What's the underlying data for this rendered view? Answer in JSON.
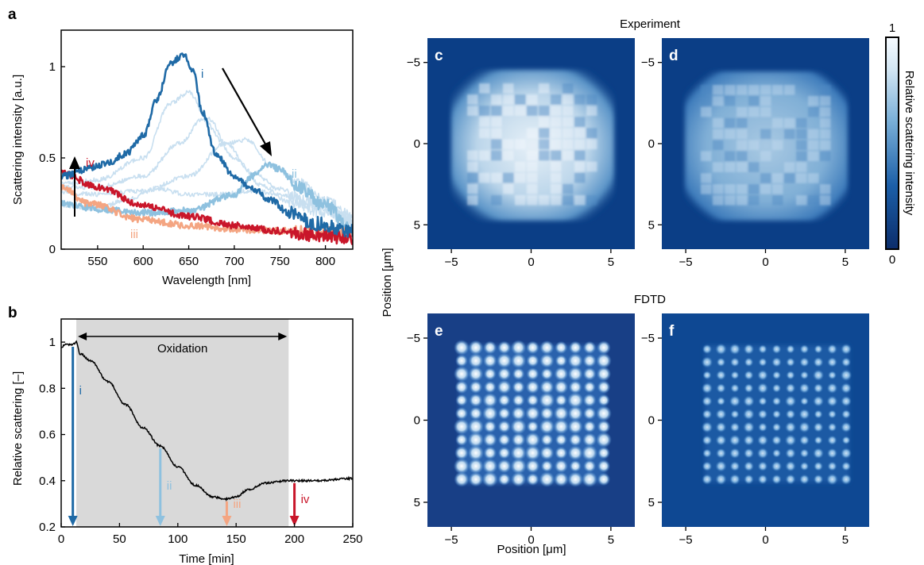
{
  "colors": {
    "i": "#1f6aa6",
    "ii": "#8ec1df",
    "iii": "#f4a582",
    "iv": "#c9162a",
    "intermediate": "#c8dff0",
    "shade": "#d9d9d9",
    "map_dark": "#0b3e86",
    "map_bright": "#f4f8fc"
  },
  "panel_a": {
    "letter": "a",
    "xlabel": "Wavelength [nm]",
    "ylabel": "Scattering intensity [a.u.]",
    "xticks": [
      "550",
      "600",
      "650",
      "700",
      "750",
      "800"
    ],
    "yticks": [
      "0",
      "0.5",
      "1"
    ],
    "labels": {
      "i": "i",
      "ii": "ii",
      "iii": "iii",
      "iv": "iv"
    }
  },
  "panel_b": {
    "letter": "b",
    "xlabel": "Time [min]",
    "ylabel": "Relative scattering [–]",
    "xticks": [
      "0",
      "50",
      "100",
      "150",
      "200",
      "250"
    ],
    "yticks": [
      "0.2",
      "0.4",
      "0.6",
      "0.8",
      "1"
    ],
    "annotation": "Oxidation",
    "labels": {
      "i": "i",
      "ii": "ii",
      "iii": "iii",
      "iv": "iv"
    }
  },
  "maps": {
    "title_top": "Experiment",
    "title_bottom": "FDTD",
    "letters": {
      "c": "c",
      "d": "d",
      "e": "e",
      "f": "f"
    },
    "xlabel": "Position [μm]",
    "ylabel": "Position [μm]",
    "xticks": [
      "−5",
      "0",
      "5"
    ],
    "yticks": [
      "−5",
      "0",
      "5"
    ]
  },
  "colorbar": {
    "label": "Relative scattering intensity",
    "max_label": "1",
    "min_label": "0"
  },
  "chart_data": [
    {
      "id": "a",
      "type": "line",
      "xlabel": "Wavelength [nm]",
      "ylabel": "Scattering intensity [a.u.]",
      "xlim": [
        510,
        830
      ],
      "ylim": [
        0,
        1.2
      ],
      "series": [
        {
          "name": "i",
          "color": "#1f6aa6",
          "x": [
            510,
            540,
            560,
            580,
            600,
            615,
            630,
            645,
            655,
            665,
            680,
            700,
            720,
            740,
            760,
            790,
            830
          ],
          "y": [
            0.4,
            0.44,
            0.47,
            0.52,
            0.62,
            0.82,
            1.02,
            1.07,
            0.97,
            0.75,
            0.52,
            0.4,
            0.33,
            0.27,
            0.2,
            0.14,
            0.1
          ]
        },
        {
          "x": [
            510,
            550,
            600,
            630,
            650,
            670,
            700,
            730,
            760,
            800,
            830
          ],
          "y": [
            0.36,
            0.38,
            0.5,
            0.8,
            0.86,
            0.72,
            0.5,
            0.35,
            0.26,
            0.2,
            0.14
          ]
        },
        {
          "x": [
            510,
            550,
            600,
            640,
            665,
            690,
            720,
            750,
            780,
            830
          ],
          "y": [
            0.34,
            0.34,
            0.4,
            0.58,
            0.71,
            0.58,
            0.42,
            0.33,
            0.26,
            0.16
          ]
        },
        {
          "x": [
            510,
            550,
            600,
            650,
            690,
            715,
            740,
            770,
            800,
            830
          ],
          "y": [
            0.31,
            0.3,
            0.32,
            0.4,
            0.58,
            0.6,
            0.46,
            0.36,
            0.26,
            0.18
          ]
        },
        {
          "x": [
            510,
            550,
            580,
            615,
            650,
            680,
            720,
            750,
            790,
            830
          ],
          "y": [
            0.24,
            0.22,
            0.27,
            0.33,
            0.3,
            0.3,
            0.32,
            0.3,
            0.24,
            0.16
          ]
        },
        {
          "name": "ii",
          "color": "#8ec1df",
          "x": [
            510,
            550,
            600,
            650,
            700,
            720,
            735,
            750,
            770,
            800,
            830
          ],
          "y": [
            0.25,
            0.22,
            0.2,
            0.21,
            0.3,
            0.4,
            0.46,
            0.44,
            0.34,
            0.24,
            0.1
          ]
        },
        {
          "name": "iii",
          "color": "#f4a582",
          "x": [
            510,
            540,
            600,
            650,
            700,
            750,
            800,
            830
          ],
          "y": [
            0.34,
            0.25,
            0.16,
            0.13,
            0.11,
            0.1,
            0.09,
            0.08
          ]
        },
        {
          "name": "iv",
          "color": "#c9162a",
          "x": [
            510,
            550,
            600,
            650,
            700,
            750,
            800,
            830
          ],
          "y": [
            0.42,
            0.34,
            0.24,
            0.18,
            0.13,
            0.1,
            0.07,
            0.06
          ]
        }
      ]
    },
    {
      "id": "b",
      "type": "line",
      "xlabel": "Time [min]",
      "ylabel": "Relative scattering [–]",
      "xlim": [
        0,
        250
      ],
      "ylim": [
        0.2,
        1.1
      ],
      "shaded_region": [
        13,
        195
      ],
      "series": [
        {
          "x": [
            0,
            5,
            10,
            13,
            16,
            25,
            40,
            55,
            70,
            85,
            100,
            115,
            130,
            140,
            150,
            160,
            175,
            195,
            220,
            250
          ],
          "y": [
            0.98,
            0.99,
            0.99,
            1.0,
            0.95,
            0.92,
            0.83,
            0.73,
            0.63,
            0.55,
            0.46,
            0.38,
            0.33,
            0.32,
            0.33,
            0.36,
            0.39,
            0.4,
            0.4,
            0.41
          ]
        }
      ],
      "markers": [
        {
          "label": "i",
          "x": 10,
          "color": "#1f6aa6"
        },
        {
          "label": "ii",
          "x": 85,
          "color": "#8ec1df"
        },
        {
          "label": "iii",
          "x": 142,
          "color": "#f4a582"
        },
        {
          "label": "iv",
          "x": 200,
          "color": "#c9162a"
        }
      ]
    },
    {
      "id": "c-f",
      "type": "heatmap",
      "xlim": [
        -6.5,
        6.5
      ],
      "ylim": [
        -6.5,
        6.5
      ],
      "colorbar_range": [
        0,
        1
      ],
      "maps": [
        {
          "id": "c",
          "group": "Experiment",
          "peak": 0.95
        },
        {
          "id": "d",
          "group": "Experiment",
          "peak": 0.6
        },
        {
          "id": "e",
          "group": "FDTD",
          "array_size": 11
        },
        {
          "id": "f",
          "group": "FDTD",
          "array_size": 11
        }
      ]
    }
  ]
}
